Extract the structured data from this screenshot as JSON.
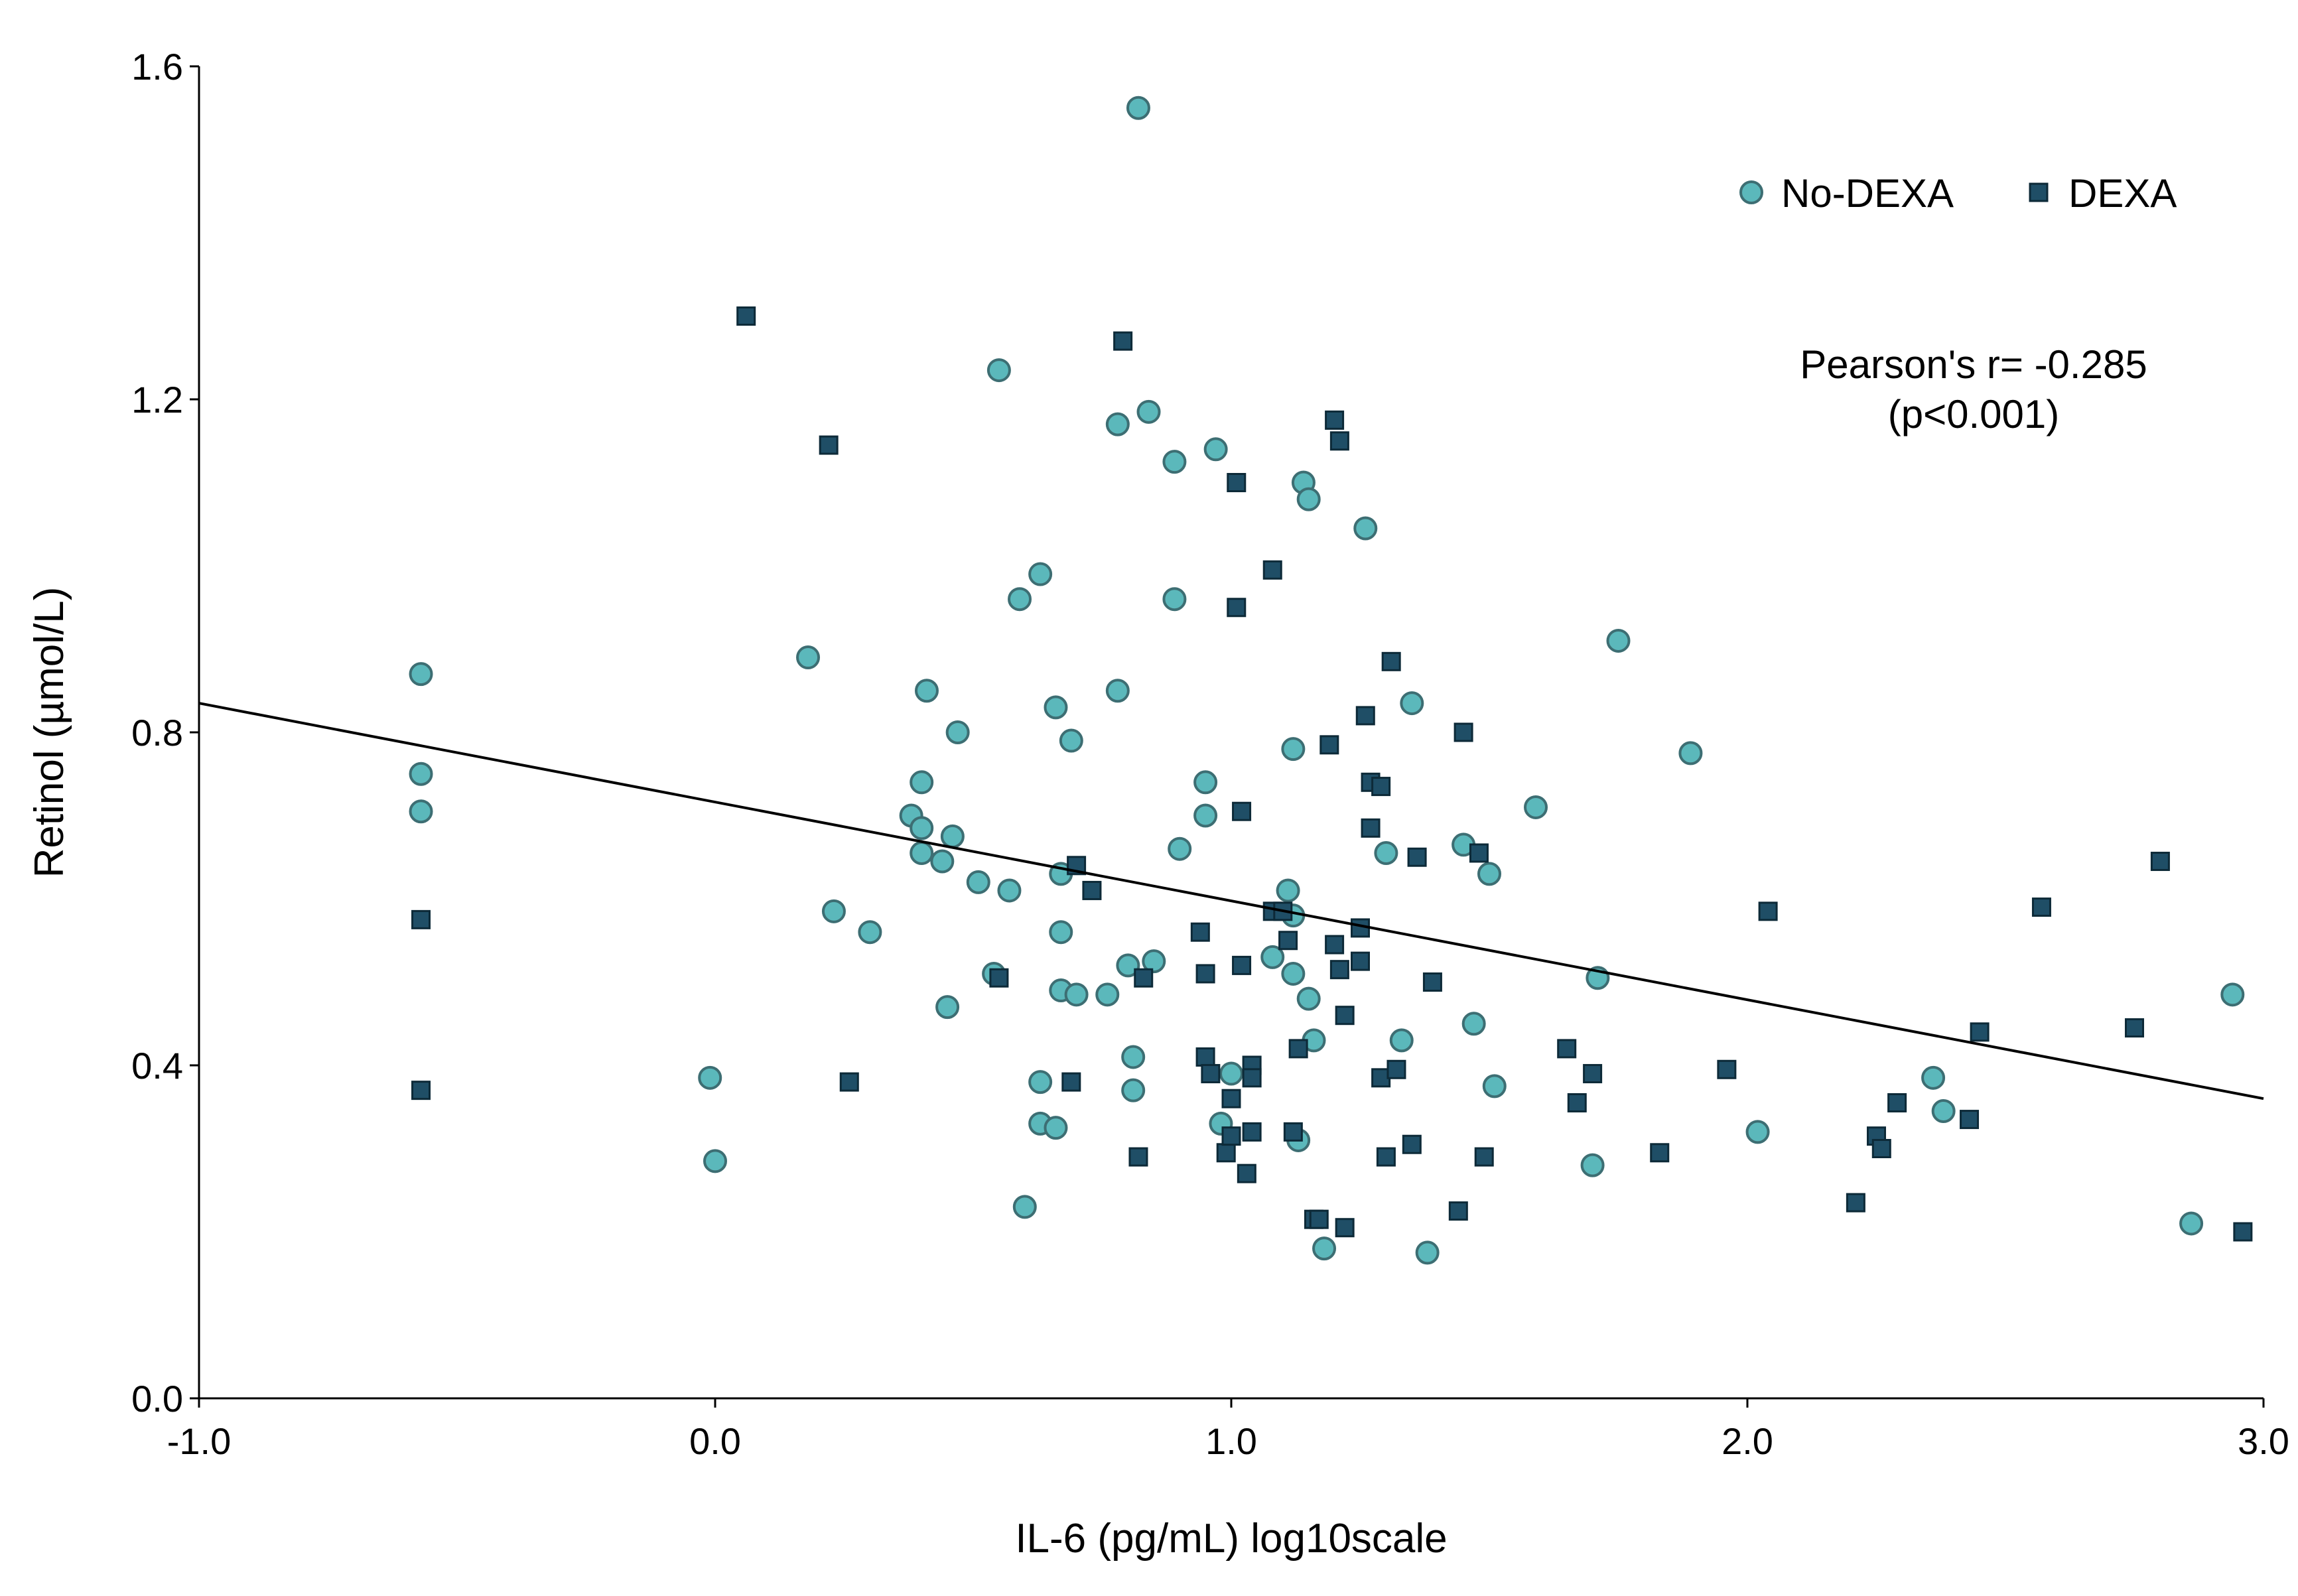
{
  "chart_data": {
    "type": "scatter",
    "xlabel": "IL-6 (pg/mL) log10scale",
    "ylabel": "Retinol (µmol/L)",
    "xlim": [
      -1.0,
      3.0
    ],
    "ylim": [
      0.0,
      1.6
    ],
    "x_ticks": [
      -1.0,
      0.0,
      1.0,
      2.0,
      3.0
    ],
    "x_tick_labels": [
      "-1.0",
      "0.0",
      "1.0",
      "2.0",
      "3.0"
    ],
    "y_ticks": [
      0.0,
      0.4,
      0.8,
      1.2,
      1.6
    ],
    "y_tick_labels": [
      "0.0",
      "0.4",
      "0.8",
      "1.2",
      "1.6"
    ],
    "grid": false,
    "legend_position": "top-right",
    "annotation": {
      "line1": "Pearson's r= -0.285",
      "line2": "(p<0.001)"
    },
    "fit_line": {
      "x": [
        -1.0,
        3.0
      ],
      "y": [
        0.835,
        0.36
      ]
    },
    "colors": {
      "no_dexa_fill": "#5bb8bb",
      "no_dexa_stroke": "#3d6e73",
      "dexa_fill": "#1f4e66",
      "dexa_stroke": "#0d2a38",
      "fit_line": "#000000"
    },
    "series": [
      {
        "name": "No-DEXA",
        "marker": "circle",
        "points": [
          [
            -0.57,
            0.87
          ],
          [
            -0.57,
            0.75
          ],
          [
            -0.57,
            0.705
          ],
          [
            -0.01,
            0.385
          ],
          [
            0.0,
            0.285
          ],
          [
            0.18,
            0.89
          ],
          [
            0.23,
            0.585
          ],
          [
            0.3,
            0.56
          ],
          [
            0.38,
            0.7
          ],
          [
            0.4,
            0.74
          ],
          [
            0.4,
            0.685
          ],
          [
            0.4,
            0.655
          ],
          [
            0.41,
            0.85
          ],
          [
            0.44,
            0.645
          ],
          [
            0.45,
            0.47
          ],
          [
            0.46,
            0.675
          ],
          [
            0.47,
            0.8
          ],
          [
            0.51,
            0.62
          ],
          [
            0.54,
            0.51
          ],
          [
            0.55,
            1.235
          ],
          [
            0.57,
            0.61
          ],
          [
            0.59,
            0.96
          ],
          [
            0.6,
            0.23
          ],
          [
            0.63,
            0.99
          ],
          [
            0.63,
            0.38
          ],
          [
            0.63,
            0.33
          ],
          [
            0.66,
            0.83
          ],
          [
            0.66,
            0.325
          ],
          [
            0.67,
            0.63
          ],
          [
            0.67,
            0.56
          ],
          [
            0.67,
            0.49
          ],
          [
            0.69,
            0.79
          ],
          [
            0.7,
            0.485
          ],
          [
            0.76,
            0.485
          ],
          [
            0.78,
            1.17
          ],
          [
            0.78,
            0.85
          ],
          [
            0.8,
            0.52
          ],
          [
            0.81,
            0.41
          ],
          [
            0.81,
            0.37
          ],
          [
            0.82,
            1.55
          ],
          [
            0.84,
            1.185
          ],
          [
            0.85,
            0.525
          ],
          [
            0.89,
            1.125
          ],
          [
            0.89,
            0.96
          ],
          [
            0.9,
            0.66
          ],
          [
            0.97,
            1.14
          ],
          [
            0.95,
            0.74
          ],
          [
            0.95,
            0.7
          ],
          [
            0.98,
            0.33
          ],
          [
            1.0,
            0.39
          ],
          [
            1.08,
            0.53
          ],
          [
            1.11,
            0.61
          ],
          [
            1.12,
            0.58
          ],
          [
            1.12,
            0.51
          ],
          [
            1.12,
            0.78
          ],
          [
            1.13,
            0.31
          ],
          [
            1.14,
            1.1
          ],
          [
            1.15,
            1.08
          ],
          [
            1.15,
            0.48
          ],
          [
            1.16,
            0.43
          ],
          [
            1.18,
            0.18
          ],
          [
            1.26,
            1.045
          ],
          [
            1.3,
            0.655
          ],
          [
            1.33,
            0.43
          ],
          [
            1.35,
            0.835
          ],
          [
            1.38,
            0.175
          ],
          [
            1.45,
            0.665
          ],
          [
            1.47,
            0.45
          ],
          [
            1.5,
            0.63
          ],
          [
            1.51,
            0.375
          ],
          [
            1.59,
            0.71
          ],
          [
            1.7,
            0.28
          ],
          [
            1.71,
            0.505
          ],
          [
            1.75,
            0.91
          ],
          [
            1.89,
            0.775
          ],
          [
            2.02,
            0.32
          ],
          [
            2.36,
            0.385
          ],
          [
            2.38,
            0.345
          ],
          [
            2.86,
            0.21
          ],
          [
            2.94,
            0.485
          ]
        ]
      },
      {
        "name": "DEXA",
        "marker": "square",
        "points": [
          [
            -0.57,
            0.575
          ],
          [
            -0.57,
            0.37
          ],
          [
            0.06,
            1.3
          ],
          [
            0.22,
            1.145
          ],
          [
            0.26,
            0.38
          ],
          [
            0.55,
            0.505
          ],
          [
            0.69,
            0.38
          ],
          [
            0.7,
            0.64
          ],
          [
            0.73,
            0.61
          ],
          [
            0.79,
            1.27
          ],
          [
            0.82,
            0.29
          ],
          [
            0.83,
            0.505
          ],
          [
            0.94,
            0.56
          ],
          [
            0.95,
            0.51
          ],
          [
            0.95,
            0.41
          ],
          [
            0.96,
            0.39
          ],
          [
            0.99,
            0.295
          ],
          [
            1.0,
            0.36
          ],
          [
            1.0,
            0.315
          ],
          [
            1.01,
            1.1
          ],
          [
            1.01,
            0.95
          ],
          [
            1.02,
            0.705
          ],
          [
            1.02,
            0.52
          ],
          [
            1.03,
            0.27
          ],
          [
            1.04,
            0.4
          ],
          [
            1.04,
            0.385
          ],
          [
            1.04,
            0.32
          ],
          [
            1.08,
            0.585
          ],
          [
            1.08,
            0.995
          ],
          [
            1.1,
            0.585
          ],
          [
            1.11,
            0.55
          ],
          [
            1.12,
            0.32
          ],
          [
            1.13,
            0.42
          ],
          [
            1.16,
            0.215
          ],
          [
            1.17,
            0.215
          ],
          [
            1.19,
            0.785
          ],
          [
            1.2,
            1.175
          ],
          [
            1.2,
            0.545
          ],
          [
            1.21,
            1.15
          ],
          [
            1.21,
            0.515
          ],
          [
            1.22,
            0.46
          ],
          [
            1.22,
            0.205
          ],
          [
            1.25,
            0.565
          ],
          [
            1.25,
            0.525
          ],
          [
            1.26,
            0.82
          ],
          [
            1.27,
            0.74
          ],
          [
            1.27,
            0.685
          ],
          [
            1.29,
            0.735
          ],
          [
            1.29,
            0.385
          ],
          [
            1.3,
            0.29
          ],
          [
            1.31,
            0.885
          ],
          [
            1.32,
            0.395
          ],
          [
            1.35,
            0.305
          ],
          [
            1.36,
            0.65
          ],
          [
            1.39,
            0.5
          ],
          [
            1.44,
            0.225
          ],
          [
            1.45,
            0.8
          ],
          [
            1.48,
            0.655
          ],
          [
            1.49,
            0.29
          ],
          [
            1.65,
            0.42
          ],
          [
            1.67,
            0.355
          ],
          [
            1.7,
            0.39
          ],
          [
            1.83,
            0.295
          ],
          [
            1.96,
            0.395
          ],
          [
            2.04,
            0.585
          ],
          [
            2.21,
            0.235
          ],
          [
            2.25,
            0.315
          ],
          [
            2.26,
            0.3
          ],
          [
            2.29,
            0.355
          ],
          [
            2.43,
            0.335
          ],
          [
            2.45,
            0.44
          ],
          [
            2.57,
            0.59
          ],
          [
            2.75,
            0.445
          ],
          [
            2.8,
            0.645
          ],
          [
            2.96,
            0.2
          ]
        ]
      }
    ]
  }
}
